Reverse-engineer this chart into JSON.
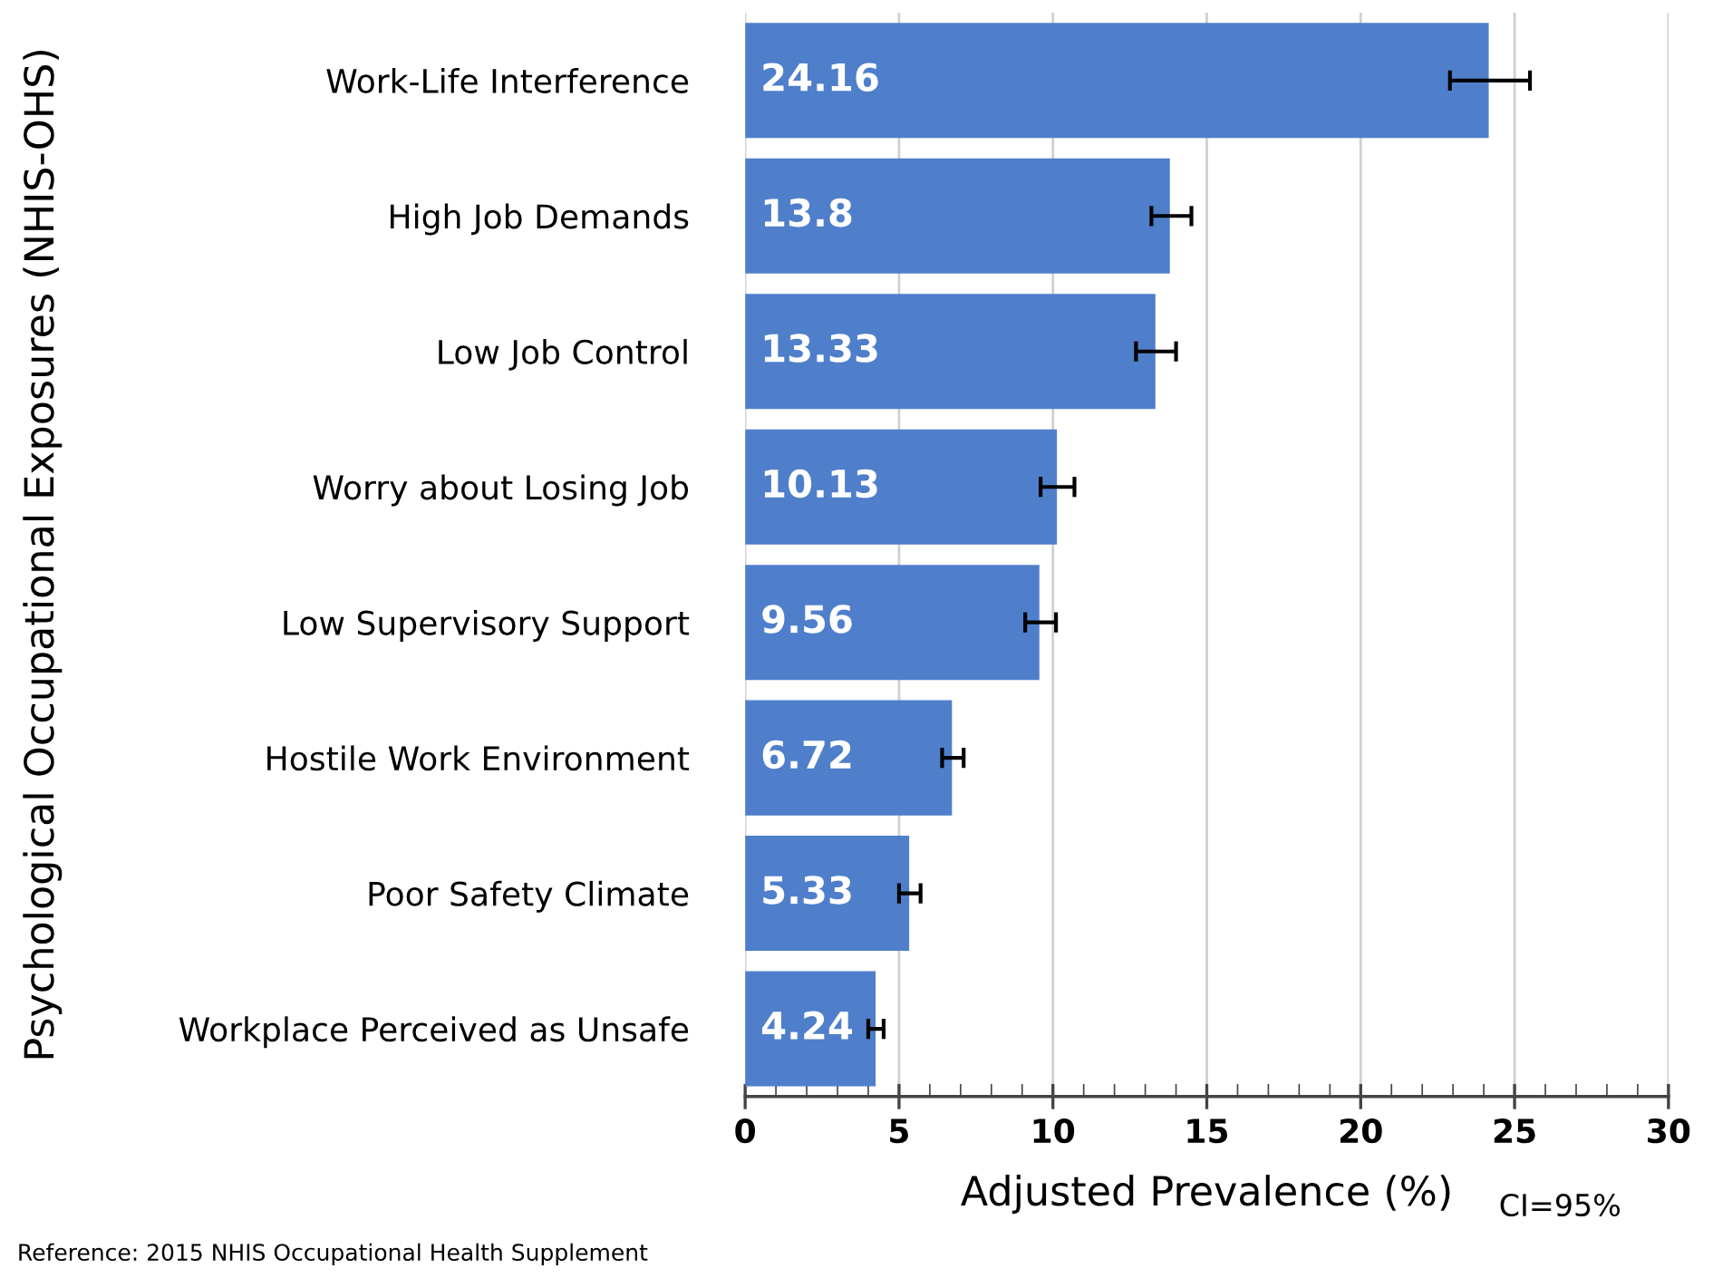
{
  "chart_data": {
    "type": "bar",
    "orientation": "horizontal",
    "ylabel": "Psychological Occupational Exposures (NHIS-OHS)",
    "xlabel": "Adjusted Prevalence (%)",
    "categories": [
      "Work-Life Interference",
      "High Job Demands",
      "Low Job Control",
      "Worry about Losing Job",
      "Low Supervisory Support",
      "Hostile Work Environment",
      "Poor Safety Climate",
      "Workplace Perceived as Unsafe"
    ],
    "values": [
      24.16,
      13.8,
      13.33,
      10.13,
      9.56,
      6.72,
      5.33,
      4.24
    ],
    "errors": [
      [
        22.9,
        25.5
      ],
      [
        13.2,
        14.5
      ],
      [
        12.7,
        14.0
      ],
      [
        9.6,
        10.7
      ],
      [
        9.1,
        10.1
      ],
      [
        6.4,
        7.1
      ],
      [
        5.0,
        5.7
      ],
      [
        4.0,
        4.5
      ]
    ],
    "color": "#4f7fcb",
    "data_labels": true,
    "grid": "x",
    "legend": false,
    "xlim": [
      0,
      30
    ],
    "xticks": [
      0,
      {
        "value": 1,
        "label": null
      },
      {
        "value": 2,
        "label": null
      },
      {
        "value": 3,
        "label": null
      },
      {
        "value": 4,
        "label": null
      },
      5,
      {
        "value": 6,
        "label": null
      },
      {
        "value": 7,
        "label": null
      },
      {
        "value": 8,
        "label": null
      },
      {
        "value": 9,
        "label": null
      },
      10,
      {
        "value": 11,
        "label": null
      },
      {
        "value": 12,
        "label": null
      },
      {
        "value": 13,
        "label": null
      },
      {
        "value": 14,
        "label": null
      },
      15,
      {
        "value": 16,
        "label": null
      },
      {
        "value": 17,
        "label": null
      },
      {
        "value": 18,
        "label": null
      },
      {
        "value": 19,
        "label": null
      },
      20,
      {
        "value": 21,
        "label": null
      },
      {
        "value": 22,
        "label": null
      },
      {
        "value": 23,
        "label": null
      },
      {
        "value": 24,
        "label": null
      },
      25,
      {
        "value": 26,
        "label": null
      },
      {
        "value": 27,
        "label": null
      },
      {
        "value": 28,
        "label": null
      },
      {
        "value": 29,
        "label": null
      },
      30
    ],
    "annotations": [
      "CI=95%",
      "Reference: 2015 NHIS Occupational Health Supplement"
    ]
  }
}
